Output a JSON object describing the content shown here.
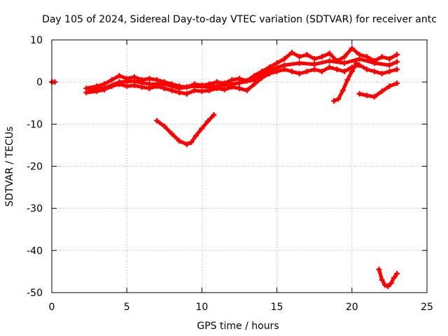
{
  "chart_data": {
    "type": "scatter",
    "title": "Day 105 of 2024, Sidereal Day-to-day VTEC variation (SDTVAR) for receiver antc",
    "xlabel": "GPS time / hours",
    "ylabel": "SDTVAR / TECUs",
    "xlim": [
      0,
      25
    ],
    "ylim": [
      -50,
      10
    ],
    "xticks": [
      0,
      5,
      10,
      15,
      20,
      25
    ],
    "yticks": [
      -50,
      -40,
      -30,
      -20,
      -10,
      0,
      10
    ],
    "grid": true,
    "marker_color": "#ff0000",
    "series": [
      {
        "name": "point-0",
        "x": [
          0.0,
          0.2
        ],
        "y": [
          0.0,
          0.0
        ]
      },
      {
        "name": "band-upper",
        "x": [
          2.3,
          3.0,
          3.5,
          4.0,
          4.5,
          5.0,
          5.5,
          6.0,
          6.5,
          7.0,
          7.5,
          8.0,
          8.5,
          9.0,
          9.5,
          10.0,
          10.5,
          11.0,
          11.5,
          12.0,
          12.5,
          13.0,
          13.5,
          14.0,
          14.5,
          15.0,
          15.5,
          16.0,
          16.5,
          17.0,
          17.5,
          18.0,
          18.5,
          19.0,
          19.5,
          20.0,
          20.5,
          21.0,
          21.5,
          22.0,
          22.5,
          23.0
        ],
        "y": [
          -1.5,
          -1.0,
          -0.5,
          0.5,
          1.5,
          0.8,
          1.2,
          0.5,
          0.8,
          0.5,
          0.0,
          -0.5,
          -1.0,
          -1.2,
          -0.5,
          -0.8,
          -0.5,
          0.0,
          -0.3,
          0.5,
          0.8,
          0.3,
          1.5,
          2.5,
          3.5,
          4.5,
          5.5,
          7.0,
          6.0,
          6.5,
          5.5,
          6.0,
          6.8,
          5.0,
          6.0,
          8.0,
          6.5,
          6.0,
          5.0,
          6.0,
          5.5,
          6.5
        ]
      },
      {
        "name": "band-lower",
        "x": [
          2.3,
          3.0,
          3.5,
          4.0,
          4.5,
          5.0,
          5.5,
          6.0,
          6.5,
          7.0,
          7.5,
          8.0,
          8.5,
          9.0,
          9.5,
          10.0,
          10.5,
          11.0,
          11.5,
          12.0,
          12.5,
          13.0,
          13.5,
          14.0,
          14.5,
          15.0,
          15.5,
          16.0,
          16.5,
          17.0,
          17.5,
          18.0,
          18.5,
          19.0,
          19.5,
          20.0,
          20.5,
          21.0,
          21.5,
          22.0,
          22.5,
          23.0
        ],
        "y": [
          -2.5,
          -2.2,
          -1.8,
          -1.0,
          -0.5,
          -1.0,
          -0.8,
          -1.2,
          -1.5,
          -1.0,
          -1.5,
          -2.0,
          -2.5,
          -2.8,
          -2.0,
          -2.2,
          -2.0,
          -1.5,
          -1.8,
          -1.2,
          -1.5,
          -2.0,
          -0.5,
          1.0,
          2.0,
          2.5,
          3.0,
          2.5,
          2.0,
          2.5,
          3.0,
          2.5,
          3.5,
          3.0,
          2.5,
          3.5,
          4.0,
          3.0,
          2.5,
          2.0,
          2.5,
          3.0
        ]
      },
      {
        "name": "band-mid",
        "x": [
          2.5,
          3.5,
          4.5,
          5.5,
          6.5,
          7.5,
          8.5,
          9.5,
          10.5,
          11.5,
          12.5,
          13.5,
          14.5,
          15.5,
          16.5,
          17.5,
          18.5,
          19.5,
          20.5,
          21.5,
          22.5,
          23.0
        ],
        "y": [
          -1.8,
          -1.5,
          0.0,
          0.2,
          -0.5,
          -0.5,
          -1.5,
          -1.0,
          -1.2,
          -0.8,
          -0.2,
          0.5,
          2.8,
          4.0,
          4.5,
          4.2,
          5.0,
          4.5,
          5.5,
          4.5,
          4.0,
          4.8
        ]
      },
      {
        "name": "dip-curve",
        "x": [
          7.0,
          7.5,
          8.0,
          8.5,
          9.0,
          9.3,
          9.6,
          10.0,
          10.4,
          10.8
        ],
        "y": [
          -9.2,
          -10.5,
          -12.3,
          -14.0,
          -14.8,
          -14.3,
          -12.8,
          -11.0,
          -9.3,
          -7.8
        ]
      },
      {
        "name": "rising-segment",
        "x": [
          18.8,
          19.1,
          19.4,
          19.7,
          20.0,
          20.3
        ],
        "y": [
          -4.5,
          -4.0,
          -2.0,
          0.5,
          2.5,
          4.5
        ]
      },
      {
        "name": "late-segment",
        "x": [
          20.5,
          21.0,
          21.5,
          22.0,
          22.5,
          23.0
        ],
        "y": [
          -2.8,
          -3.2,
          -3.5,
          -2.2,
          -1.0,
          -0.3
        ]
      },
      {
        "name": "bottom-curve",
        "x": [
          21.8,
          22.0,
          22.2,
          22.4,
          22.6,
          22.8,
          23.0
        ],
        "y": [
          -44.5,
          -47.0,
          -48.2,
          -48.5,
          -47.8,
          -46.5,
          -45.5
        ]
      }
    ]
  }
}
